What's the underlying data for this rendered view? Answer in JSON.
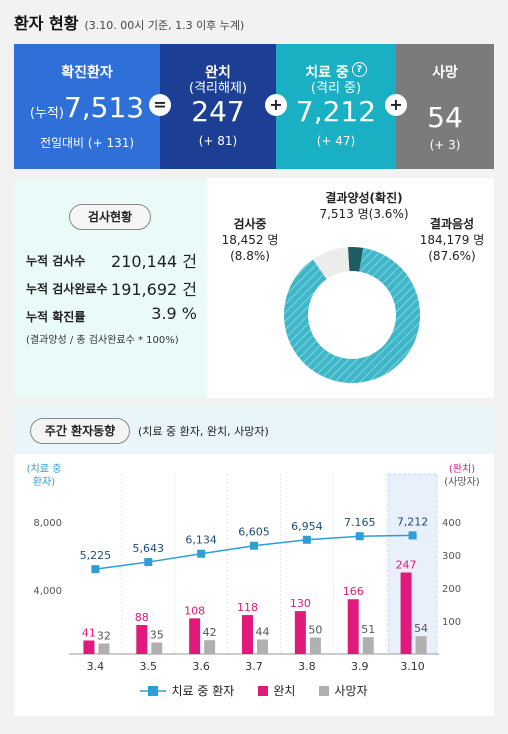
{
  "header": {
    "title": "환자 현황",
    "subtitle": "(3.10. 00시 기준, 1.3 이후 누계)"
  },
  "stats": {
    "confirmed": {
      "label": "확진환자",
      "prefix": "(누적)",
      "value": "7,513",
      "change": "전일대비 (+ 131)"
    },
    "released": {
      "label": "완치",
      "label2": "(격리해제)",
      "value": "247",
      "change": "(+ 81)"
    },
    "treatment": {
      "label": "치료 중",
      "label2": "(격리 중)",
      "value": "7,212",
      "change": "(+ 47)"
    },
    "deaths": {
      "label": "사망",
      "value": "54",
      "change": "(+ 3)"
    },
    "op_equal": "=",
    "op_plus": "+"
  },
  "testing": {
    "title": "검사현황",
    "rows": [
      {
        "label": "누적 검사수",
        "value": "210,144 건"
      },
      {
        "label": "누적 검사완료수",
        "value": "191,692 건"
      },
      {
        "label": "누적 확진률",
        "value": "3.9 %"
      }
    ],
    "note": "(결과양성 / 총 검사완료수 * 100%)",
    "donut": {
      "positive": {
        "title": "결과양성(확진)",
        "value": "7,513 명(3.6%)",
        "share": 3.6,
        "color": "#1d5c63"
      },
      "testing": {
        "title": "검사중",
        "value": "18,452 명",
        "pct": "(8.8%)",
        "share": 8.8,
        "color": "#ececec"
      },
      "negative": {
        "title": "결과음성",
        "value": "184,179 명",
        "pct": "(87.6%)",
        "share": 87.6,
        "color": "#3fb6c8"
      }
    }
  },
  "weekly": {
    "title": "주간 환자동향",
    "subtitle": "(치료 중 환자, 완치, 사망자)",
    "left_axis_label": [
      "(치료 중",
      "환자)"
    ],
    "right_axis_label": [
      "(완치)",
      "(사망자)"
    ],
    "legend": {
      "treatment": "치료 중 환자",
      "released": "완치",
      "deaths": "사망자"
    },
    "colors": {
      "treatment": "#2b9fd6",
      "released": "#e0197a",
      "deaths": "#b0b0b0",
      "highlight": "#e9f0fc"
    }
  },
  "chart_data": {
    "type": "bar",
    "categories": [
      "3.4",
      "3.5",
      "3.6",
      "3.7",
      "3.8",
      "3.9",
      "3.10"
    ],
    "series": [
      {
        "name": "치료 중 환자",
        "type": "line",
        "axis": "left",
        "values": [
          5225,
          5643,
          6134,
          6605,
          6954,
          7165,
          7212
        ],
        "labels": [
          "5,225",
          "5,643",
          "6,134",
          "6,605",
          "6,954",
          "7.165",
          "7,212"
        ]
      },
      {
        "name": "완치",
        "type": "bar",
        "axis": "right",
        "values": [
          41,
          88,
          108,
          118,
          130,
          166,
          247
        ]
      },
      {
        "name": "사망자",
        "type": "bar",
        "axis": "right",
        "values": [
          32,
          35,
          42,
          44,
          50,
          51,
          54
        ]
      }
    ],
    "left_ticks": [
      "8,000",
      "4,000"
    ],
    "left_tick_values": [
      8000,
      4000
    ],
    "right_ticks": [
      "400",
      "300",
      "200",
      "100"
    ],
    "right_tick_values": [
      400,
      300,
      200,
      100
    ],
    "ylim_right": [
      0,
      450
    ],
    "highlight_category": "3.10"
  }
}
